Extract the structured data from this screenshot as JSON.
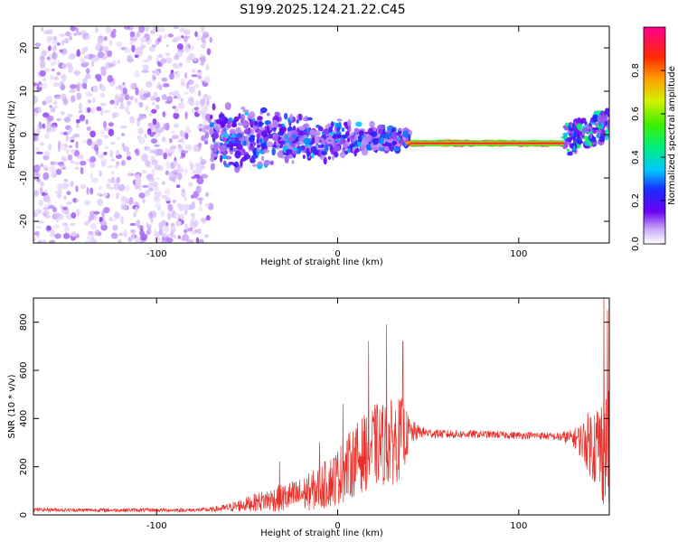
{
  "title": "S199.2025.124.21.22.C45",
  "colors": {
    "snr_line": "#e8302a",
    "spectrogram_background": "#ffffff"
  },
  "chart_data": [
    {
      "type": "heatmap",
      "xlabel": "Height of straight line (km)",
      "ylabel": "Frequency (Hz)",
      "xlim": [
        -168,
        150
      ],
      "ylim": [
        -25,
        25
      ],
      "x_ticks": [
        "-100",
        "0",
        "100"
      ],
      "y_ticks": [
        "-20",
        "-10",
        "0",
        "10",
        "20"
      ],
      "grid": false,
      "colorbar": {
        "label": "Normalized spectral amplitude",
        "range": [
          0.0,
          1.0
        ],
        "ticks": [
          "0.0",
          "0.2",
          "0.4",
          "0.6",
          "0.8"
        ],
        "colormap": "rainbow"
      },
      "regions": [
        {
          "x_range": [
            -168,
            -70
          ],
          "f_range": [
            -25,
            25
          ],
          "amplitude": [
            0.03,
            0.12
          ],
          "pattern": "scattered low-amplitude noise"
        },
        {
          "x_range": [
            -70,
            40
          ],
          "f_range": [
            -10,
            8
          ],
          "amplitude": [
            0.08,
            0.35
          ],
          "pattern": "dense band around 0 Hz narrowing toward 40 km"
        },
        {
          "x_range": [
            40,
            125
          ],
          "f_range": [
            -2.5,
            -1.5
          ],
          "amplitude": [
            0.45,
            1.0
          ],
          "pattern": "narrow high-amplitude line at about -2 Hz"
        },
        {
          "x_range": [
            125,
            150
          ],
          "f_range": [
            -5,
            9
          ],
          "amplitude": [
            0.1,
            0.5
          ],
          "pattern": "rising band toward 0 to 5 Hz"
        }
      ]
    },
    {
      "type": "line",
      "xlabel": "Height of straight line (km)",
      "ylabel": "SNR (10 * v/v)",
      "xlim": [
        -168,
        150
      ],
      "ylim": [
        0,
        900
      ],
      "x_ticks": [
        "-100",
        "0",
        "100"
      ],
      "y_ticks": [
        "0",
        "200",
        "400",
        "600",
        "800"
      ],
      "grid": false,
      "series": [
        {
          "x": [
            -168,
            -140,
            -110,
            -80,
            -70,
            -60,
            -50,
            -40,
            -30,
            -20,
            -10,
            0,
            10,
            20,
            30,
            35,
            40,
            45,
            50,
            60,
            80,
            100,
            110,
            120,
            130,
            135,
            140,
            145,
            150
          ],
          "mean": [
            22,
            20,
            20,
            20,
            22,
            30,
            45,
            60,
            70,
            85,
            110,
            160,
            230,
            290,
            300,
            320,
            340,
            345,
            340,
            335,
            335,
            330,
            330,
            325,
            320,
            310,
            300,
            280,
            260
          ],
          "spread": [
            8,
            8,
            8,
            8,
            10,
            18,
            30,
            45,
            60,
            70,
            90,
            120,
            150,
            170,
            180,
            170,
            60,
            25,
            20,
            18,
            15,
            15,
            15,
            15,
            35,
            80,
            150,
            220,
            260
          ],
          "peak_x": [
            -32,
            -10,
            3,
            17,
            27,
            36,
            147,
            149
          ],
          "peak_y": [
            220,
            300,
            460,
            720,
            790,
            720,
            900,
            850
          ]
        }
      ]
    }
  ]
}
